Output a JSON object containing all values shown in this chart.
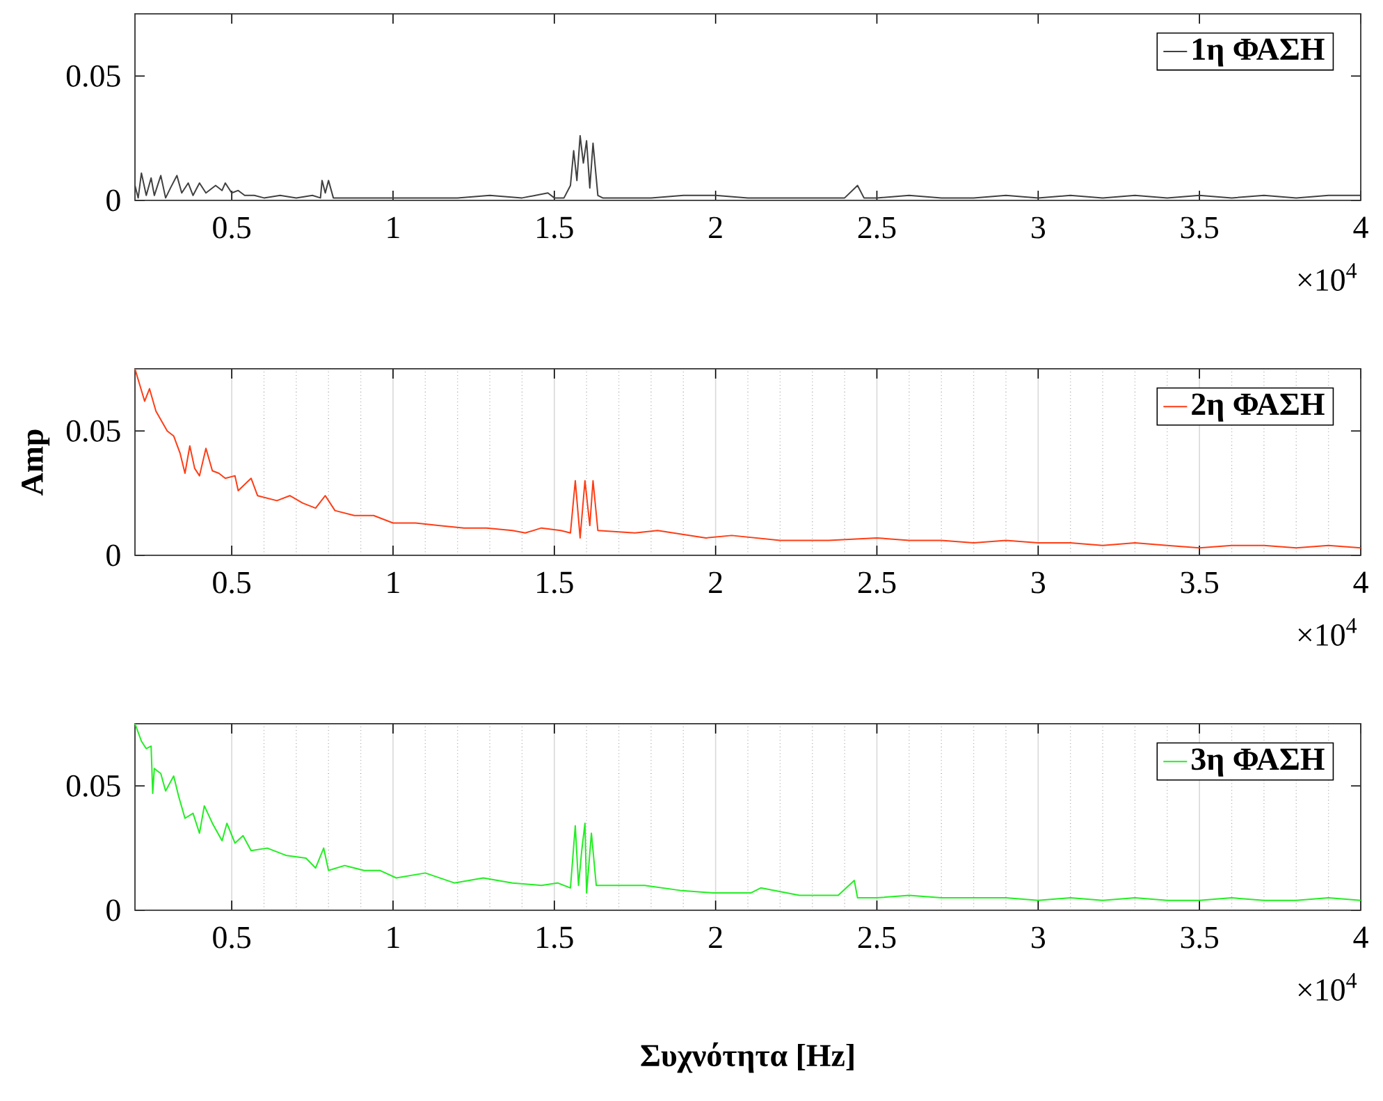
{
  "chart_data": [
    {
      "type": "line",
      "xlim": [
        0.2,
        4
      ],
      "ylim": [
        0,
        0.075
      ],
      "xticks": [
        0.5,
        1,
        1.5,
        2,
        2.5,
        3,
        3.5,
        4
      ],
      "yticks": [
        0,
        0.05
      ],
      "grid": false,
      "legend": "top right",
      "annotations": [
        "×10$^{4}$"
      ],
      "series": [
        {
          "name": "1η ΦΑΣΗ",
          "color": "#404040",
          "x": [
            0.2,
            0.21,
            0.22,
            0.235,
            0.25,
            0.26,
            0.28,
            0.295,
            0.31,
            0.33,
            0.345,
            0.365,
            0.38,
            0.4,
            0.42,
            0.45,
            0.47,
            0.48,
            0.5,
            0.52,
            0.54,
            0.57,
            0.6,
            0.65,
            0.7,
            0.75,
            0.775,
            0.78,
            0.79,
            0.8,
            0.815,
            0.9,
            1,
            1.1,
            1.2,
            1.3,
            1.4,
            1.48,
            1.5,
            1.53,
            1.55,
            1.56,
            1.57,
            1.58,
            1.59,
            1.6,
            1.61,
            1.62,
            1.635,
            1.65,
            1.7,
            1.8,
            1.9,
            2,
            2.1,
            2.2,
            2.3,
            2.4,
            2.44,
            2.46,
            2.5,
            2.6,
            2.7,
            2.8,
            2.9,
            3,
            3.1,
            3.2,
            3.3,
            3.4,
            3.5,
            3.6,
            3.7,
            3.8,
            3.9,
            4
          ],
          "values": [
            0.006,
            0.001,
            0.011,
            0.002,
            0.009,
            0.002,
            0.01,
            0.001,
            0.005,
            0.01,
            0.003,
            0.007,
            0.002,
            0.007,
            0.003,
            0.006,
            0.004,
            0.007,
            0.003,
            0.004,
            0.002,
            0.002,
            0.001,
            0.002,
            0.001,
            0.002,
            0.001,
            0.008,
            0.003,
            0.008,
            0.001,
            0.001,
            0.001,
            0.001,
            0.001,
            0.002,
            0.001,
            0.003,
            0.001,
            0.001,
            0.006,
            0.02,
            0.008,
            0.026,
            0.015,
            0.024,
            0.005,
            0.023,
            0.002,
            0.001,
            0.001,
            0.001,
            0.002,
            0.002,
            0.001,
            0.001,
            0.001,
            0.001,
            0.006,
            0.001,
            0.001,
            0.002,
            0.001,
            0.001,
            0.002,
            0.001,
            0.002,
            0.001,
            0.002,
            0.001,
            0.002,
            0.001,
            0.002,
            0.001,
            0.002,
            0.002
          ]
        }
      ]
    },
    {
      "type": "line",
      "xlim": [
        0.2,
        4
      ],
      "ylim": [
        0,
        0.075
      ],
      "ylabel": "Amp",
      "xticks": [
        0.5,
        1,
        1.5,
        2,
        2.5,
        3,
        3.5,
        4
      ],
      "yticks": [
        0,
        0.05
      ],
      "grid": "x",
      "legend": "top right",
      "annotations": [
        "×10$^{4}$"
      ],
      "series": [
        {
          "name": "2η ΦΑΣΗ",
          "color": "#ff3c14",
          "x": [
            0.2,
            0.23,
            0.245,
            0.265,
            0.3,
            0.32,
            0.34,
            0.355,
            0.37,
            0.385,
            0.4,
            0.42,
            0.44,
            0.46,
            0.48,
            0.51,
            0.52,
            0.56,
            0.58,
            0.64,
            0.68,
            0.72,
            0.76,
            0.79,
            0.82,
            0.88,
            0.94,
            1,
            1.07,
            1.14,
            1.22,
            1.29,
            1.37,
            1.41,
            1.46,
            1.52,
            1.55,
            1.565,
            1.58,
            1.595,
            1.61,
            1.62,
            1.635,
            1.75,
            1.82,
            1.97,
            2.05,
            2.2,
            2.35,
            2.5,
            2.6,
            2.7,
            2.8,
            2.9,
            3,
            3.1,
            3.2,
            3.3,
            3.4,
            3.5,
            3.6,
            3.7,
            3.8,
            3.9,
            4
          ],
          "values": [
            0.075,
            0.062,
            0.067,
            0.058,
            0.05,
            0.048,
            0.041,
            0.033,
            0.044,
            0.035,
            0.032,
            0.043,
            0.034,
            0.033,
            0.031,
            0.032,
            0.026,
            0.031,
            0.024,
            0.022,
            0.024,
            0.021,
            0.019,
            0.024,
            0.018,
            0.016,
            0.016,
            0.013,
            0.013,
            0.012,
            0.011,
            0.011,
            0.01,
            0.009,
            0.011,
            0.01,
            0.009,
            0.03,
            0.007,
            0.03,
            0.012,
            0.03,
            0.01,
            0.009,
            0.01,
            0.007,
            0.008,
            0.006,
            0.006,
            0.007,
            0.006,
            0.006,
            0.005,
            0.006,
            0.005,
            0.005,
            0.004,
            0.005,
            0.004,
            0.003,
            0.004,
            0.004,
            0.003,
            0.004,
            0.003
          ]
        }
      ]
    },
    {
      "type": "line",
      "xlim": [
        0.2,
        4
      ],
      "ylim": [
        0,
        0.075
      ],
      "xlabel": "Συχνότητα [Hz]",
      "xticks": [
        0.5,
        1,
        1.5,
        2,
        2.5,
        3,
        3.5,
        4
      ],
      "yticks": [
        0,
        0.05
      ],
      "grid": "x",
      "legend": "top right",
      "annotations": [
        "×10$^{4}$"
      ],
      "series": [
        {
          "name": "3η ΦΑΣΗ",
          "color": "#22ee22",
          "x": [
            0.2,
            0.22,
            0.235,
            0.25,
            0.255,
            0.26,
            0.28,
            0.295,
            0.32,
            0.335,
            0.355,
            0.38,
            0.4,
            0.415,
            0.44,
            0.47,
            0.485,
            0.51,
            0.535,
            0.56,
            0.61,
            0.67,
            0.73,
            0.76,
            0.785,
            0.8,
            0.85,
            0.91,
            0.96,
            1.01,
            1.1,
            1.19,
            1.28,
            1.37,
            1.46,
            1.51,
            1.55,
            1.565,
            1.575,
            1.585,
            1.595,
            1.6,
            1.615,
            1.63,
            1.66,
            1.78,
            1.89,
            1.99,
            2.11,
            2.14,
            2.26,
            2.38,
            2.43,
            2.44,
            2.5,
            2.6,
            2.7,
            2.8,
            2.9,
            3,
            3.1,
            3.2,
            3.3,
            3.4,
            3.5,
            3.6,
            3.7,
            3.8,
            3.9,
            4
          ],
          "values": [
            0.075,
            0.068,
            0.065,
            0.066,
            0.047,
            0.057,
            0.055,
            0.048,
            0.054,
            0.046,
            0.037,
            0.039,
            0.031,
            0.042,
            0.035,
            0.028,
            0.035,
            0.027,
            0.03,
            0.024,
            0.025,
            0.022,
            0.021,
            0.017,
            0.025,
            0.016,
            0.018,
            0.016,
            0.016,
            0.013,
            0.015,
            0.011,
            0.013,
            0.011,
            0.01,
            0.011,
            0.009,
            0.034,
            0.01,
            0.024,
            0.035,
            0.007,
            0.031,
            0.01,
            0.01,
            0.01,
            0.008,
            0.007,
            0.007,
            0.009,
            0.006,
            0.006,
            0.012,
            0.005,
            0.005,
            0.006,
            0.005,
            0.005,
            0.005,
            0.004,
            0.005,
            0.004,
            0.005,
            0.004,
            0.004,
            0.005,
            0.004,
            0.004,
            0.005,
            0.004
          ]
        }
      ]
    }
  ]
}
